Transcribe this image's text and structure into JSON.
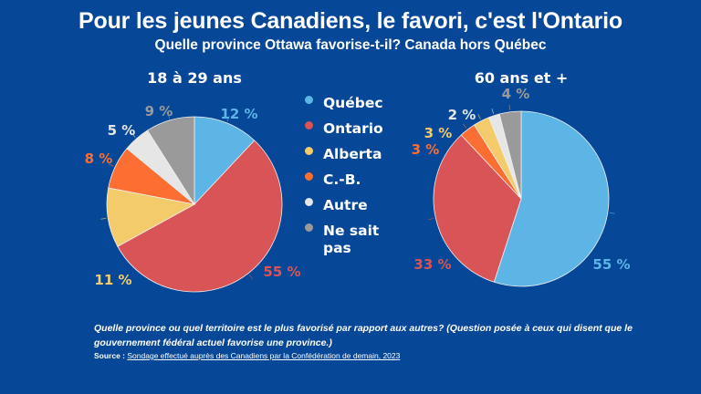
{
  "header": {
    "title": "Pour les jeunes Canadiens, le favori, c'est l'Ontario",
    "subtitle": "Quelle province Ottawa favorise-t-il? Canada hors Québec"
  },
  "colors": {
    "background": "#064797",
    "Québec": "#5db5e6",
    "Ontario": "#d95456",
    "Alberta": "#f3cb6b",
    "C.-B.": "#fc6e32",
    "Autre": "#e6e6e6",
    "Ne sait pas": "#9a9a9a"
  },
  "legend": [
    {
      "label": "Québec",
      "icon": "dot-icon"
    },
    {
      "label": "Ontario",
      "icon": "dot-icon"
    },
    {
      "label": "Alberta",
      "icon": "dot-icon"
    },
    {
      "label": "C.-B.",
      "icon": "dot-icon"
    },
    {
      "label": "Autre",
      "icon": "dot-icon"
    },
    {
      "label": "Ne sait pas",
      "icon": "dot-icon"
    }
  ],
  "chart_data": [
    {
      "type": "pie",
      "title": "18 à 29 ans",
      "categories": [
        "Québec",
        "Ontario",
        "Alberta",
        "C.-B.",
        "Autre",
        "Ne sait pas"
      ],
      "values": [
        12,
        55,
        11,
        8,
        5,
        9
      ],
      "labels": [
        "12 %",
        "55 %",
        "11 %",
        "8 %",
        "5 %",
        "9 %"
      ],
      "start_angle": "12 o'clock",
      "direction": "clockwise"
    },
    {
      "type": "pie",
      "title": "60 ans et +",
      "categories": [
        "Québec",
        "Ontario",
        "Alberta",
        "C.-B.",
        "Autre",
        "Ne sait pas"
      ],
      "values": [
        55,
        33,
        3,
        3,
        2,
        4
      ],
      "labels": [
        "55 %",
        "33 %",
        "3 %",
        "3 %",
        "2 %",
        "4 %"
      ],
      "slice_order": [
        "Québec",
        "Ontario",
        "C.-B.",
        "Alberta",
        "Autre",
        "Ne sait pas"
      ],
      "start_angle": "12 o'clock",
      "direction": "clockwise"
    }
  ],
  "footer": {
    "question": "Quelle province ou quel territoire est le plus favorisé par rapport aux autres? (Question posée à ceux qui disent que le gouvernement fédéral actuel favorise une province.)",
    "source_label": "Source :",
    "source_link": "Sondage effectué auprès des Canadiens par la Confédération de demain, 2023"
  }
}
